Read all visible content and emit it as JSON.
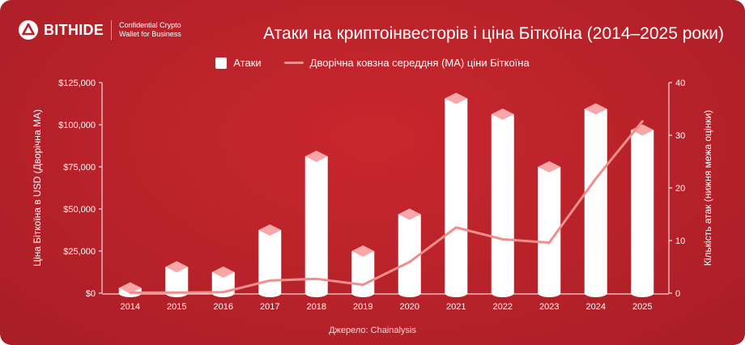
{
  "brand": {
    "name": "BITHIDE",
    "tagline_line1": "Confidential Crypto",
    "tagline_line2": "Wallet for Business",
    "logo_icon": "triangle-in-circle-icon"
  },
  "title": "Атаки на криптоінвесторів і ціна Біткоїна (2014–2025 роки)",
  "legend": {
    "bars_label": "Атаки",
    "line_label": "Дворічна ковзна середдня (MA) ціни Біткоїна"
  },
  "source": "Джерело: Chainalysis",
  "colors": {
    "background": "#b8222a",
    "bar": "#ffffff",
    "bar_cap": "#f7a7a7",
    "line": "#f08d8d"
  },
  "chart_data": {
    "type": "bar",
    "categories": [
      "2014",
      "2015",
      "2016",
      "2017",
      "2018",
      "2019",
      "2020",
      "2021",
      "2022",
      "2023",
      "2024",
      "2025"
    ],
    "series": [
      {
        "name": "Атаки",
        "type": "bar",
        "axis": "right",
        "values": [
          1,
          5,
          4,
          12,
          26,
          8,
          15,
          37,
          34,
          24,
          35,
          31
        ]
      },
      {
        "name": "Дворічна ковзна середдня (MA) ціни Біткоїна",
        "type": "line",
        "axis": "left",
        "values": [
          300,
          350,
          600,
          7500,
          8500,
          5000,
          18500,
          39000,
          32000,
          30000,
          68000,
          102000
        ]
      }
    ],
    "ylabel_left": "Ціна Біткоїна в USD (Дворічна MA)",
    "ylabel_right": "Кількість атак (нижня межа оцінки)",
    "ylim_left": [
      0,
      125000
    ],
    "ylim_right": [
      0,
      40
    ],
    "yticks_left": [
      "$0",
      "$25,000",
      "$50,000",
      "$75,000",
      "$100,000",
      "$125,000"
    ],
    "yticks_right": [
      "0",
      "10",
      "20",
      "30",
      "40"
    ],
    "grid": false,
    "legend_position": "top-center"
  }
}
